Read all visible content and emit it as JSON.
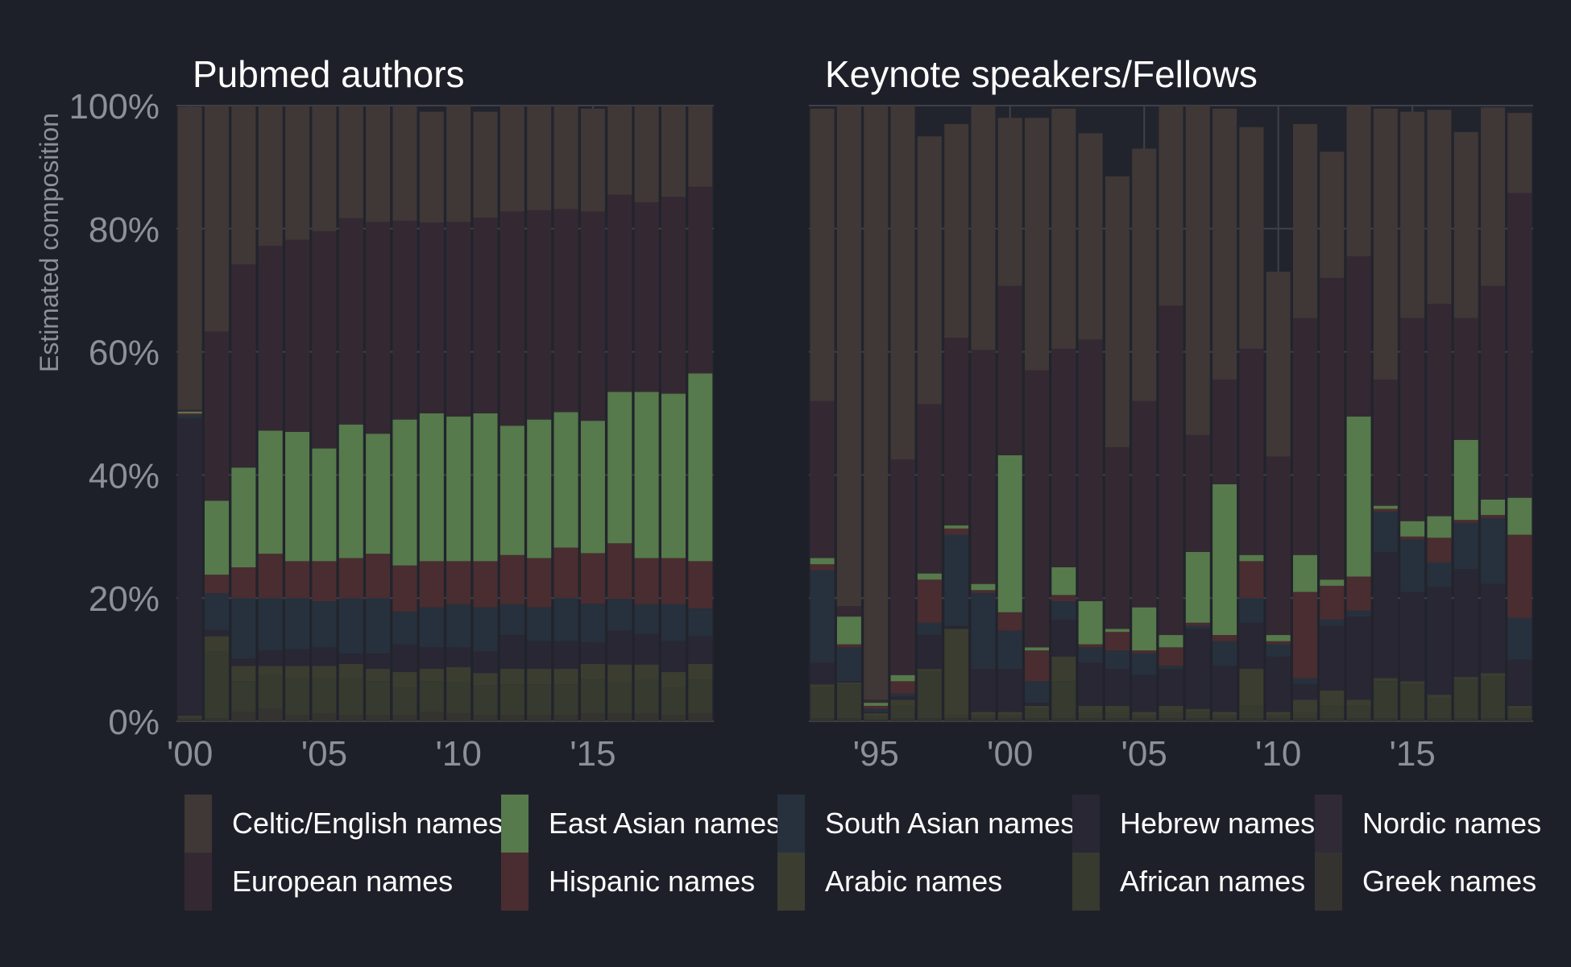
{
  "chart_data": {
    "type": "bar",
    "stacked": true,
    "ylabel": "Estimated composition",
    "ylim": [
      0,
      100
    ],
    "yticks": [
      "0%",
      "20%",
      "40%",
      "60%",
      "80%",
      "100%"
    ],
    "stack_order_bottom_to_top": [
      "Greek names",
      "African names",
      "Arabic names",
      "Hebrew names",
      "South Asian names",
      "Hispanic names",
      "East Asian names",
      "Nordic names",
      "European names",
      "Celtic/English names"
    ],
    "series_colors": {
      "Celtic/English names": "#3f3836",
      "East Asian names": "#567a4b",
      "South Asian names": "#27313d",
      "Hebrew names": "#292734",
      "Nordic names": "#302a36",
      "European names": "#342933",
      "Hispanic names": "#4a2d30",
      "Arabic names": "#3b3d30",
      "African names": "#363a2f",
      "Greek names": "#35332f"
    },
    "panels": [
      {
        "title": "Pubmed authors",
        "x_ticks": [
          {
            "label": "'00",
            "year": 2000
          },
          {
            "label": "'05",
            "year": 2005
          },
          {
            "label": "'10",
            "year": 2010
          },
          {
            "label": "'15",
            "year": 2015
          }
        ],
        "x": [
          2000,
          2001,
          2002,
          2003,
          2004,
          2005,
          2006,
          2007,
          2008,
          2009,
          2010,
          2011,
          2012,
          2013,
          2014,
          2015,
          2016,
          2017,
          2018,
          2019
        ],
        "series": [
          {
            "name": "Greek names",
            "values": [
              0.3,
              0.5,
              1.5,
              2,
              1,
              1.2,
              1,
              1,
              1,
              1.5,
              1.3,
              1,
              1,
              1,
              1,
              1.3,
              1.2,
              1.2,
              1,
              1.3
            ]
          },
          {
            "name": "African names",
            "values": [
              0.3,
              10.8,
              5,
              5.5,
              6,
              5.8,
              6,
              5.5,
              4.5,
              5,
              5,
              4.8,
              5,
              5,
              5,
              5.5,
              5,
              5.5,
              4.5,
              5.5
            ]
          },
          {
            "name": "Arabic names",
            "values": [
              0.3,
              2.5,
              2.5,
              1.5,
              2,
              2,
              2.3,
              2,
              2.5,
              2,
              2.5,
              2,
              2.5,
              2.5,
              2.5,
              2.5,
              3,
              2.5,
              2.5,
              2.5
            ]
          },
          {
            "name": "Hebrew names",
            "values": [
              48.3,
              1,
              1.2,
              2.5,
              2.7,
              3,
              1.7,
              2.5,
              4.5,
              3.5,
              3.2,
              3.5,
              5.5,
              4.5,
              4.5,
              3.5,
              5.5,
              5,
              5,
              4.5
            ]
          },
          {
            "name": "South Asian names",
            "values": [
              0.5,
              6,
              9.8,
              8.5,
              8.3,
              7.5,
              9,
              9,
              5.3,
              6.5,
              7,
              7.2,
              5,
              5.5,
              7,
              6.3,
              5.2,
              4.8,
              6,
              4.5
            ]
          },
          {
            "name": "Hispanic names",
            "values": [
              0.3,
              3,
              5,
              7.2,
              6,
              6.5,
              6.5,
              7.2,
              7.5,
              7.5,
              7,
              7.5,
              8,
              8,
              8.2,
              8.2,
              9,
              7.5,
              7.5,
              7.7
            ]
          },
          {
            "name": "East Asian names",
            "values": [
              0.3,
              12,
              16.2,
              20,
              21,
              18.3,
              21.7,
              19.5,
              23.7,
              24,
              23.5,
              24,
              21,
              22.5,
              22,
              21.5,
              24.6,
              27,
              26.7,
              30.5
            ]
          },
          {
            "name": "Nordic names",
            "values": [
              0,
              0,
              0,
              0,
              0,
              0,
              0,
              0,
              0,
              0,
              0,
              0,
              0,
              0,
              0,
              0,
              0,
              0,
              0,
              0
            ]
          },
          {
            "name": "European names",
            "values": [
              0.3,
              27.5,
              33,
              30,
              31.2,
              35.3,
              33.5,
              34.4,
              32.3,
              31,
              31.6,
              31.8,
              34.8,
              34,
              33,
              34,
              32,
              30.8,
              32,
              30.3
            ]
          },
          {
            "name": "Celtic/English names",
            "values": [
              49.2,
              36.7,
              25.8,
              22.8,
              21.8,
              20.4,
              18.3,
              18.9,
              18.7,
              18,
              18.9,
              17.2,
              17.2,
              17,
              16.8,
              16.7,
              14.5,
              15.7,
              14.8,
              13.2
            ]
          }
        ]
      },
      {
        "title": "Keynote speakers/Fellows",
        "x_ticks": [
          {
            "label": "'95",
            "year": 1995
          },
          {
            "label": "'00",
            "year": 2000
          },
          {
            "label": "'05",
            "year": 2005
          },
          {
            "label": "'10",
            "year": 2010
          },
          {
            "label": "'15",
            "year": 2015
          }
        ],
        "x": [
          1993,
          1994,
          1995,
          1996,
          1997,
          1998,
          1999,
          2000,
          2001,
          2002,
          2003,
          2004,
          2005,
          2006,
          2007,
          2008,
          2009,
          2010,
          2011,
          2012,
          2013,
          2014,
          2015,
          2016,
          2017,
          2018,
          2019
        ],
        "series": [
          {
            "name": "Greek names",
            "values": [
              0.5,
              0.5,
              0.3,
              0.5,
              0.5,
              0.5,
              0.5,
              0.5,
              0.5,
              0.5,
              0.5,
              0.5,
              0.5,
              0.5,
              0.5,
              0.5,
              0.5,
              0.5,
              0.5,
              0.5,
              0.5,
              0.5,
              0.5,
              0.5,
              0.5,
              0.5,
              0.5
            ]
          },
          {
            "name": "African names",
            "values": [
              5,
              5.5,
              0.5,
              2,
              7.5,
              0.5,
              0.5,
              0.5,
              1.5,
              6,
              1,
              1,
              0.5,
              1,
              1,
              0.5,
              2,
              0.5,
              1,
              2,
              2,
              6,
              5.5,
              3.3,
              6.2,
              6.8,
              1.5
            ]
          },
          {
            "name": "Arabic names",
            "values": [
              0.5,
              0.3,
              0.5,
              1,
              0.5,
              14,
              0.5,
              0.5,
              0.5,
              4,
              1,
              1,
              0.5,
              1,
              0.5,
              0.5,
              6,
              0.5,
              2,
              2.5,
              1,
              0.5,
              0.5,
              0.5,
              0.5,
              0.5,
              0.5
            ]
          },
          {
            "name": "Hebrew names",
            "values": [
              3.5,
              0.2,
              0.2,
              0.5,
              5.5,
              0.5,
              7,
              7,
              0.5,
              6,
              7,
              6,
              6,
              6,
              13,
              7.5,
              7.5,
              9,
              2.5,
              10.5,
              13.5,
              20.5,
              14.5,
              17.5,
              17.5,
              14.5,
              7.5
            ]
          },
          {
            "name": "South Asian names",
            "values": [
              15,
              5.5,
              0.5,
              0.5,
              2,
              14.8,
              12.3,
              6.2,
              3.5,
              3,
              2.5,
              3,
              3.5,
              0.5,
              0.5,
              4,
              4,
              2,
              1,
              1,
              1,
              6.5,
              8.5,
              4,
              7.5,
              10.7,
              6.8
            ]
          },
          {
            "name": "Hispanic names",
            "values": [
              1,
              0.5,
              0.5,
              2,
              7,
              1,
              0.5,
              3,
              5,
              1,
              0.5,
              3,
              0.5,
              3,
              0.5,
              1,
              6,
              0.5,
              14,
              5.5,
              5.5,
              0.5,
              0.5,
              4,
              0.5,
              0.5,
              13.5
            ]
          },
          {
            "name": "East Asian names",
            "values": [
              1,
              4.5,
              0.5,
              1,
              1,
              0.5,
              1,
              25.5,
              0.5,
              4.5,
              7,
              0.5,
              7,
              2,
              11.5,
              24.5,
              1,
              1,
              6,
              1,
              26,
              0.5,
              2.5,
              3.5,
              13,
              2.5,
              6
            ]
          },
          {
            "name": "Nordic names",
            "values": [
              0,
              0,
              0,
              0,
              0,
              0,
              0,
              0,
              0,
              0,
              0,
              0,
              0,
              0,
              0,
              0,
              0,
              0,
              0,
              0,
              0,
              0,
              0,
              0,
              0,
              0,
              0
            ]
          },
          {
            "name": "European names",
            "values": [
              25.5,
              1.7,
              0.5,
              35,
              27.5,
              30.5,
              38,
              27.5,
              45,
              35.5,
              42.5,
              29.5,
              33.5,
              53.5,
              19,
              17,
              33.5,
              29,
              38.5,
              49,
              26,
              20.5,
              33,
              34.5,
              19.8,
              34.7,
              49.5
            ]
          },
          {
            "name": "Celtic/English names",
            "values": [
              47.5,
              81.3,
              96.5,
              57.5,
              43.5,
              34.7,
              39.7,
              27.3,
              41,
              39,
              33.5,
              44,
              41,
              32.5,
              53.5,
              44,
              36,
              30,
              31.5,
              20.5,
              24.5,
              44,
              33.5,
              31.5,
              30.2,
              29,
              13
            ]
          }
        ]
      }
    ],
    "legend": {
      "placement": "bottom",
      "rows": [
        [
          "Celtic/English names",
          "East Asian names",
          "South Asian names",
          "Hebrew names",
          "Nordic names"
        ],
        [
          "European names",
          "Hispanic names",
          "Arabic names",
          "African names",
          "Greek names"
        ]
      ]
    }
  }
}
